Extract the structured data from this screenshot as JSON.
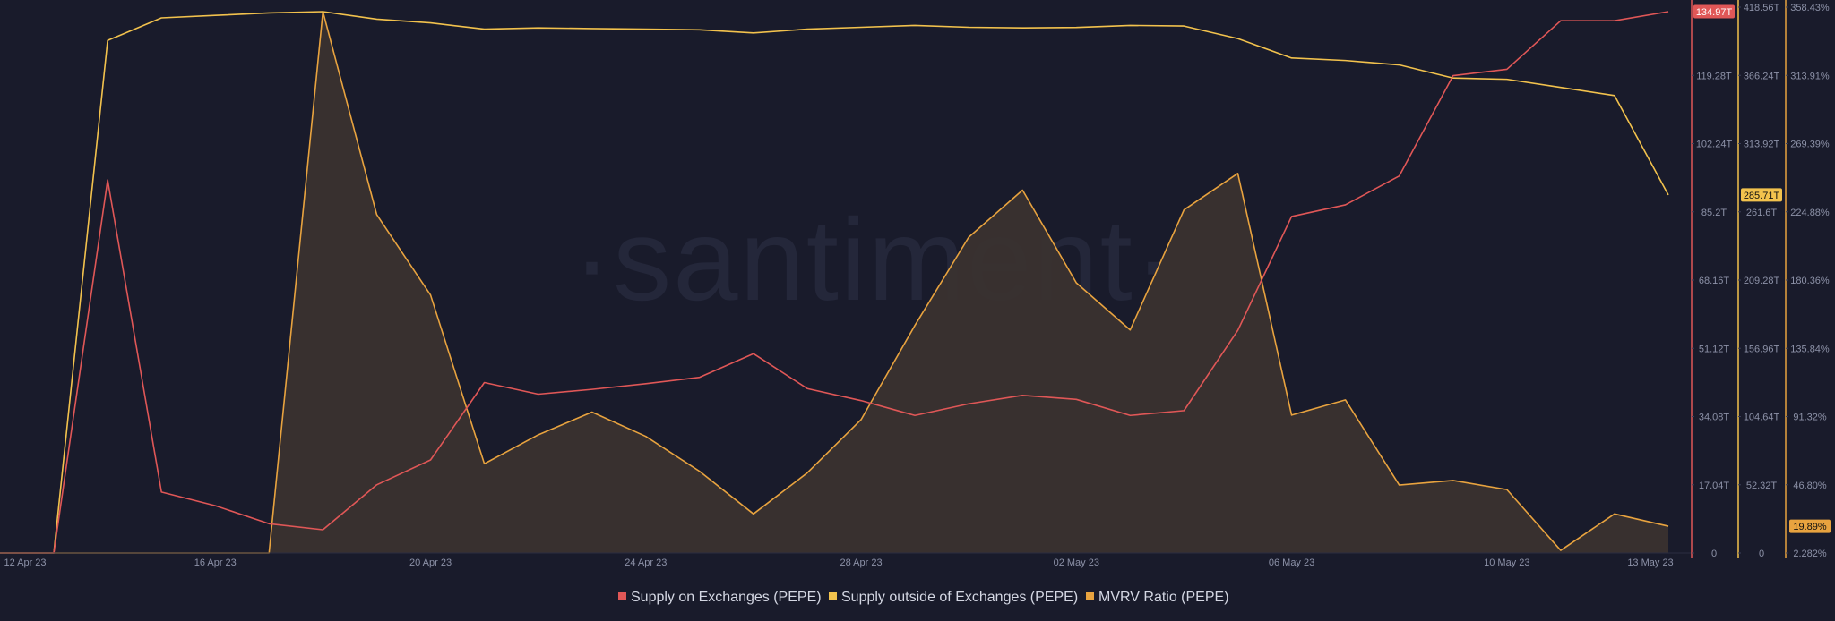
{
  "watermark": "·santiment·",
  "colors": {
    "background": "#191b2b",
    "supply_on_exchanges": "#e05757",
    "supply_outside_exchanges": "#f2c24d",
    "mvrv": "#e8a33f",
    "mvrv_fill": "#3a312f"
  },
  "chart_data": {
    "type": "line",
    "x": [
      "12 Apr 23",
      "13 Apr 23",
      "14 Apr 23",
      "15 Apr 23",
      "16 Apr 23",
      "17 Apr 23",
      "18 Apr 23",
      "19 Apr 23",
      "20 Apr 23",
      "21 Apr 23",
      "22 Apr 23",
      "23 Apr 23",
      "24 Apr 23",
      "25 Apr 23",
      "26 Apr 23",
      "27 Apr 23",
      "28 Apr 23",
      "29 Apr 23",
      "30 Apr 23",
      "01 May 23",
      "02 May 23",
      "03 May 23",
      "04 May 23",
      "05 May 23",
      "06 May 23",
      "07 May 23",
      "08 May 23",
      "09 May 23",
      "10 May 23",
      "11 May 23",
      "12 May 23",
      "13 May 23"
    ],
    "x_tick_labels": [
      "12 Apr 23",
      "16 Apr 23",
      "20 Apr 23",
      "24 Apr 23",
      "28 Apr 23",
      "02 May 23",
      "06 May 23",
      "10 May 23",
      "13 May 23"
    ],
    "series": [
      {
        "name": "Supply on Exchanges (PEPE)",
        "axis": "left",
        "values": [
          0,
          0,
          93,
          15.2,
          11.8,
          7.3,
          5.8,
          17,
          23.2,
          42.5,
          39.6,
          40.8,
          42.2,
          43.8,
          49.7,
          41,
          38,
          34.3,
          37.2,
          39.3,
          38.3,
          34.3,
          35.5,
          55.5,
          83.9,
          86.8,
          94,
          119,
          120.6,
          132.7,
          132.7,
          134.97
        ]
      },
      {
        "name": "Supply outside of Exchanges (PEPE)",
        "axis": "middle",
        "values": [
          0,
          0,
          409,
          427,
          429,
          431,
          432,
          426,
          423,
          418,
          419,
          418.5,
          418,
          417.5,
          415,
          418,
          419.5,
          421,
          419.5,
          419,
          419.4,
          421,
          420.5,
          410.5,
          395,
          393,
          389.5,
          379,
          378,
          371.5,
          365,
          285.71
        ]
      },
      {
        "name": "MVRV Ratio (PEPE)",
        "axis": "right",
        "values": [
          2.282,
          2.282,
          2.282,
          2.282,
          2.282,
          2.282,
          358.43,
          224.88,
          172,
          61,
          80,
          95,
          79,
          56,
          28,
          55,
          90,
          152,
          210,
          241,
          180,
          149,
          228,
          252,
          93,
          103,
          47,
          50,
          44,
          4,
          28,
          19.89
        ]
      }
    ],
    "axes": {
      "left": {
        "ylim": [
          0,
          134.97
        ],
        "tick_labels": [
          "0",
          "17.04T",
          "34.08T",
          "51.12T",
          "68.16T",
          "85.2T",
          "102.24T",
          "119.28T"
        ],
        "current_value_label": "134.97T"
      },
      "middle": {
        "ylim": [
          0,
          432
        ],
        "tick_labels": [
          "0",
          "52.32T",
          "104.64T",
          "156.96T",
          "209.28T",
          "261.6T",
          "313.92T",
          "366.24T",
          "418.56T"
        ],
        "current_value_label": "285.71T"
      },
      "right": {
        "ylim": [
          2.282,
          358.43
        ],
        "tick_labels": [
          "2.282%",
          "46.80%",
          "91.32%",
          "135.84%",
          "180.36%",
          "224.88%",
          "269.39%",
          "313.91%",
          "358.43%"
        ],
        "current_value_label": "19.89%"
      }
    },
    "legend": {
      "placement": "bottom-center",
      "items": [
        "Supply on Exchanges (PEPE)",
        "Supply outside of Exchanges (PEPE)",
        "MVRV Ratio (PEPE)"
      ]
    },
    "grid": false
  }
}
